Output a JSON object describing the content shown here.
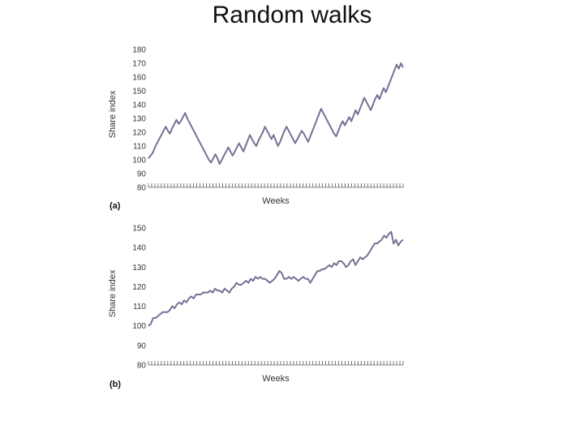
{
  "slide_title": "Random walks",
  "chart_data": [
    {
      "type": "line",
      "panel_label": "(a)",
      "xlabel": "Weeks",
      "ylabel": "Share index",
      "ylim": [
        80,
        180
      ],
      "yticks": [
        80,
        90,
        100,
        110,
        120,
        130,
        140,
        150,
        160,
        170,
        180
      ],
      "x_tick_count": 80,
      "color": "#7b6d96",
      "values": [
        101,
        103,
        105,
        109,
        112,
        115,
        118,
        121,
        124,
        121,
        119,
        123,
        126,
        129,
        126,
        128,
        131,
        134,
        130,
        127,
        124,
        121,
        118,
        115,
        112,
        109,
        106,
        103,
        100,
        98,
        101,
        104,
        101,
        97,
        100,
        103,
        106,
        109,
        106,
        103,
        106,
        109,
        112,
        109,
        106,
        110,
        114,
        118,
        115,
        112,
        110,
        114,
        117,
        120,
        124,
        121,
        118,
        115,
        118,
        114,
        110,
        113,
        117,
        121,
        124,
        121,
        118,
        115,
        112,
        115,
        118,
        121,
        119,
        116,
        113,
        117,
        121,
        125,
        129,
        133,
        137,
        134,
        131,
        128,
        125,
        122,
        119,
        117,
        121,
        125,
        128,
        125,
        128,
        131,
        128,
        132,
        136,
        133,
        137,
        141,
        145,
        142,
        139,
        136,
        140,
        144,
        147,
        144,
        148,
        152,
        149,
        153,
        157,
        161,
        165,
        169,
        166,
        170,
        167
      ]
    },
    {
      "type": "line",
      "panel_label": "(b)",
      "xlabel": "Weeks",
      "ylabel": "Share index",
      "ylim": [
        80,
        150
      ],
      "yticks": [
        80,
        90,
        100,
        110,
        120,
        130,
        140,
        150
      ],
      "x_tick_count": 80,
      "color": "#7b6d96",
      "values": [
        100,
        101,
        104,
        104,
        105,
        106,
        107,
        107,
        107,
        108,
        110,
        109,
        111,
        112,
        111,
        113,
        112,
        114,
        115,
        114,
        116,
        116,
        116,
        117,
        117,
        117,
        118,
        117,
        119,
        118,
        118,
        117,
        119,
        118,
        117,
        119,
        120,
        122,
        121,
        121,
        122,
        123,
        122,
        124,
        123,
        125,
        124,
        125,
        124,
        124,
        123,
        122,
        123,
        124,
        126,
        128,
        127,
        124,
        124,
        125,
        124,
        125,
        124,
        123,
        124,
        125,
        124,
        124,
        122,
        124,
        126,
        128,
        128,
        129,
        129,
        130,
        131,
        130,
        132,
        131,
        133,
        133,
        132,
        130,
        131,
        133,
        134,
        131,
        133,
        135,
        134,
        135,
        136,
        138,
        140,
        142,
        142,
        143,
        144,
        146,
        145,
        147,
        148,
        142,
        144,
        141,
        143,
        144
      ]
    }
  ]
}
